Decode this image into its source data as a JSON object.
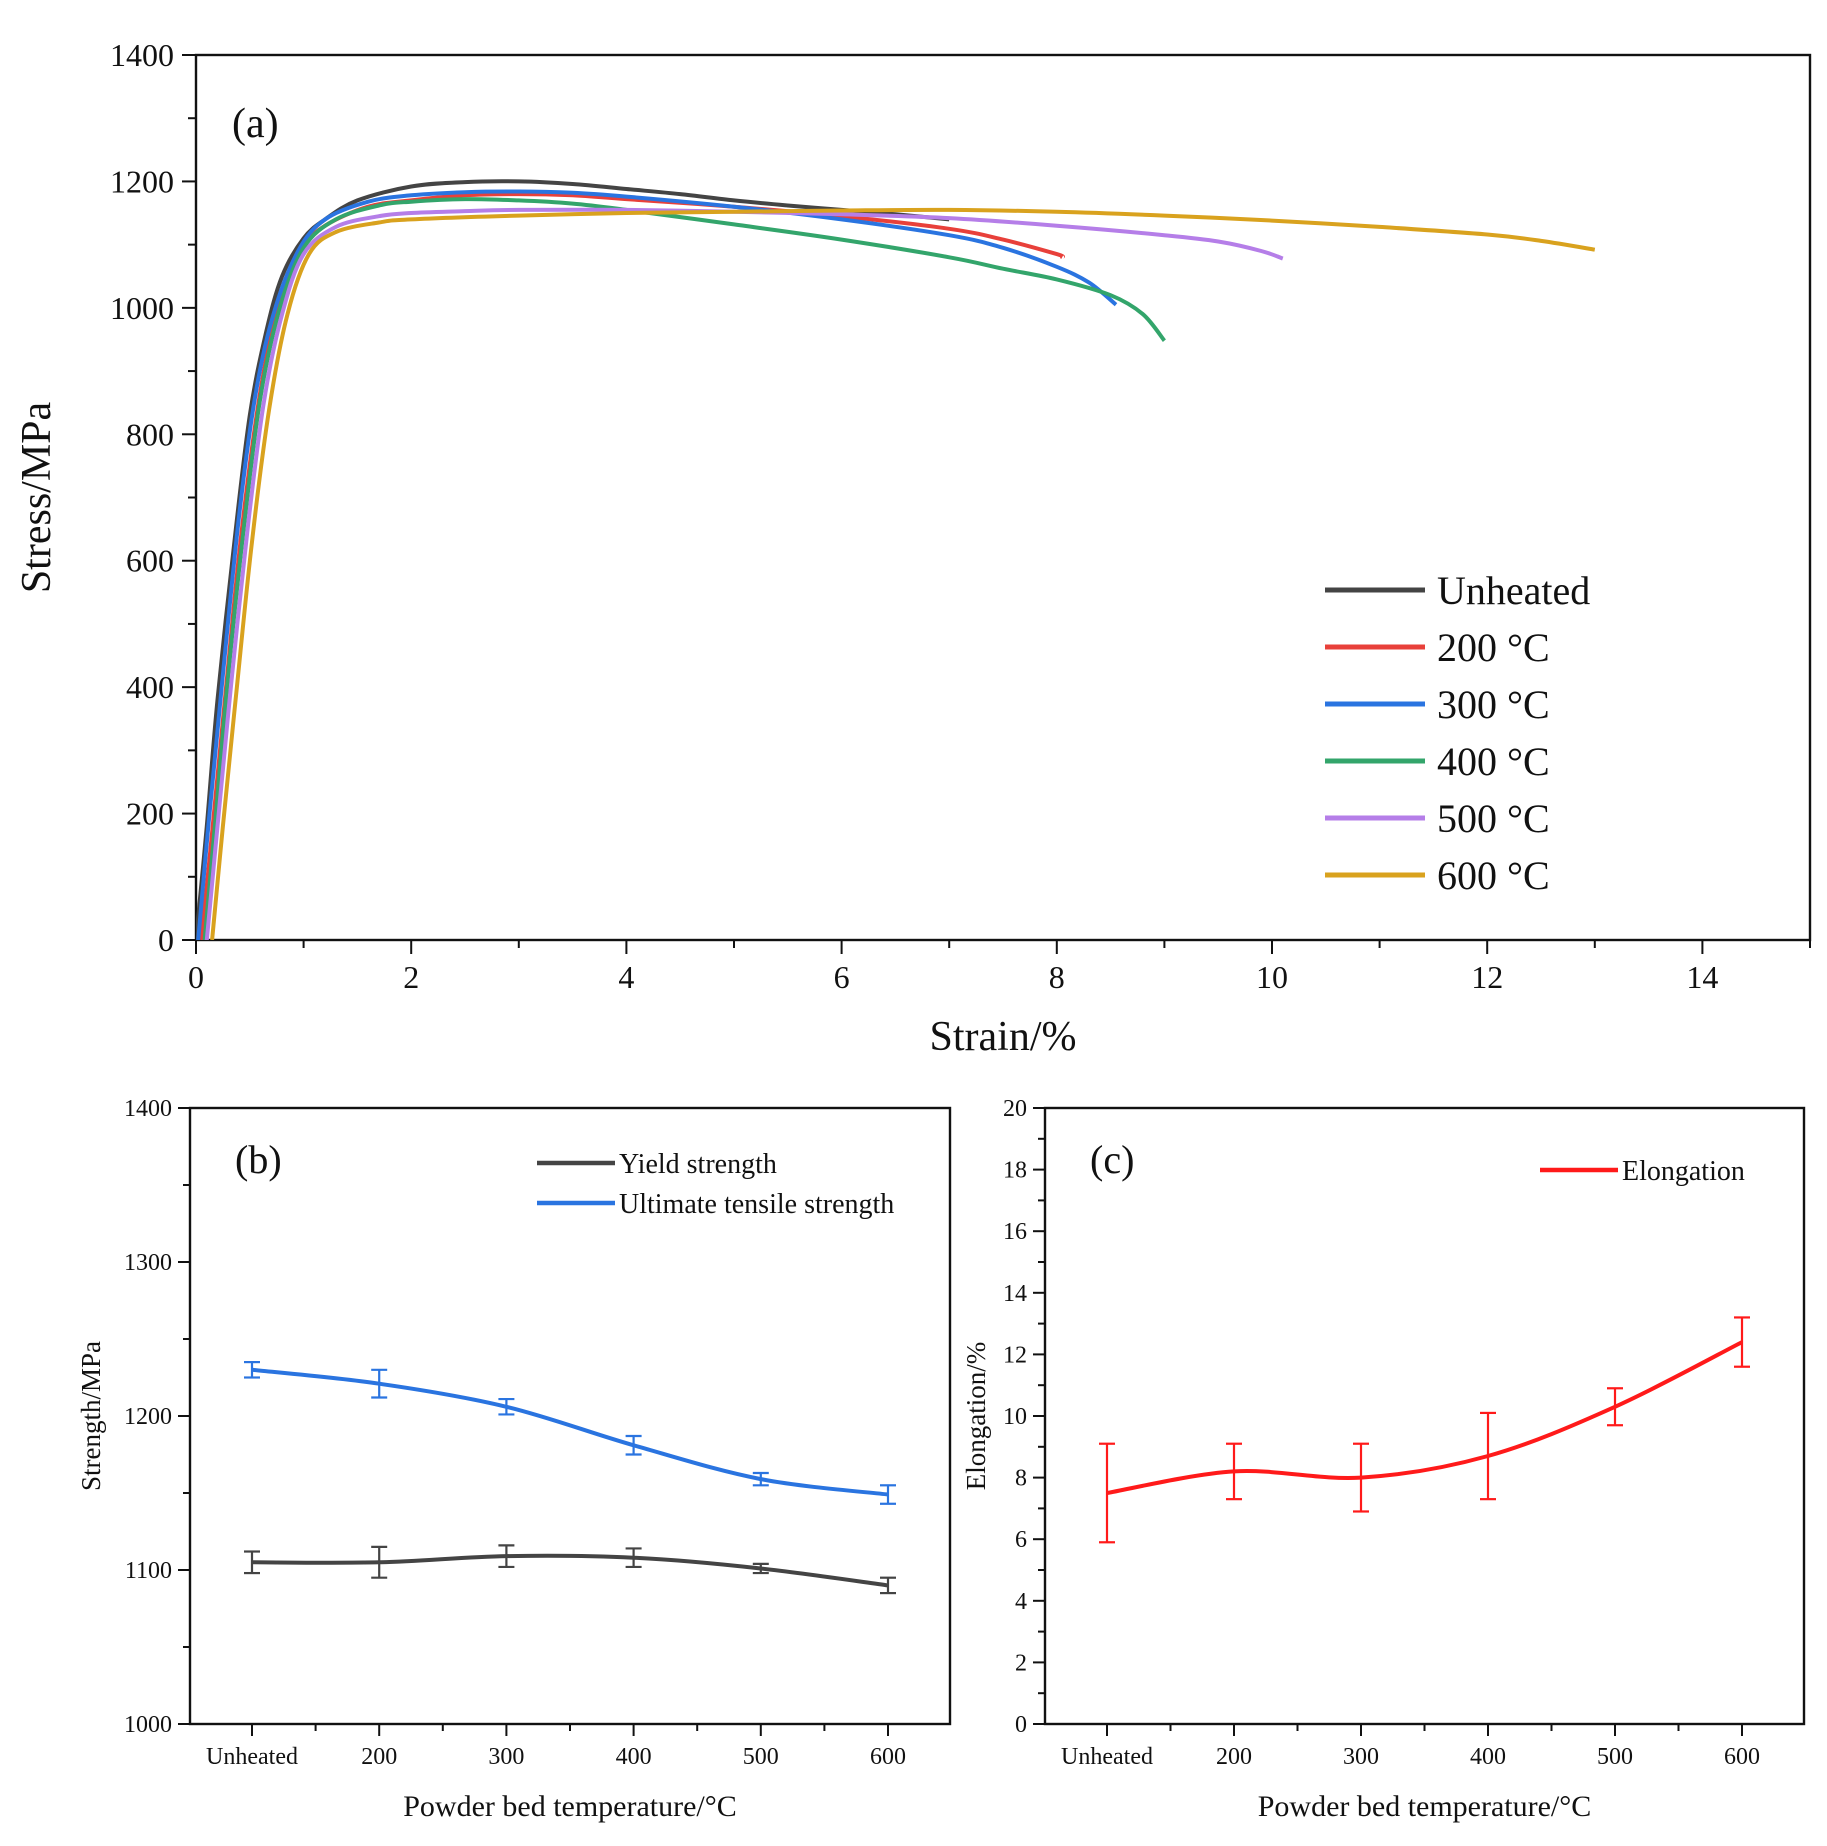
{
  "chart_data": [
    {
      "id": "a",
      "type": "line",
      "panel_label": "(a)",
      "title": "",
      "xlabel": "Strain/%",
      "ylabel": "Stress/MPa",
      "xlim": [
        0,
        15
      ],
      "ylim": [
        0,
        1400
      ],
      "xticks": [
        0,
        2,
        4,
        6,
        8,
        10,
        12,
        14
      ],
      "yticks": [
        0,
        200,
        400,
        600,
        800,
        1000,
        1200,
        1400
      ],
      "legend_position": "lower-right",
      "series": [
        {
          "name": "Unheated",
          "color": "#444444",
          "points": [
            [
              0,
              0
            ],
            [
              0.1,
              180
            ],
            [
              0.2,
              380
            ],
            [
              0.35,
              620
            ],
            [
              0.5,
              830
            ],
            [
              0.65,
              960
            ],
            [
              0.8,
              1050
            ],
            [
              1.0,
              1110
            ],
            [
              1.2,
              1140
            ],
            [
              1.5,
              1170
            ],
            [
              2.0,
              1192
            ],
            [
              2.5,
              1199
            ],
            [
              3.0,
              1200
            ],
            [
              3.5,
              1196
            ],
            [
              4.0,
              1188
            ],
            [
              4.5,
              1180
            ],
            [
              5.0,
              1170
            ],
            [
              5.5,
              1162
            ],
            [
              6.0,
              1155
            ],
            [
              6.5,
              1148
            ],
            [
              7.0,
              1140
            ]
          ]
        },
        {
          "name": "200 °C",
          "color": "#e8403a",
          "points": [
            [
              0.05,
              0
            ],
            [
              0.15,
              170
            ],
            [
              0.28,
              400
            ],
            [
              0.42,
              640
            ],
            [
              0.6,
              870
            ],
            [
              0.78,
              1010
            ],
            [
              1.0,
              1095
            ],
            [
              1.2,
              1130
            ],
            [
              1.6,
              1160
            ],
            [
              2.0,
              1170
            ],
            [
              2.5,
              1178
            ],
            [
              3.0,
              1180
            ],
            [
              3.5,
              1178
            ],
            [
              4.0,
              1172
            ],
            [
              5.0,
              1160
            ],
            [
              6.0,
              1145
            ],
            [
              7.0,
              1125
            ],
            [
              7.5,
              1108
            ],
            [
              8.0,
              1085
            ],
            [
              8.05,
              1080
            ]
          ]
        },
        {
          "name": "300 °C",
          "color": "#2a74e0",
          "points": [
            [
              0.02,
              0
            ],
            [
              0.12,
              190
            ],
            [
              0.25,
              420
            ],
            [
              0.4,
              670
            ],
            [
              0.55,
              860
            ],
            [
              0.72,
              990
            ],
            [
              0.95,
              1090
            ],
            [
              1.2,
              1140
            ],
            [
              1.6,
              1168
            ],
            [
              2.0,
              1178
            ],
            [
              2.5,
              1183
            ],
            [
              3.0,
              1184
            ],
            [
              3.5,
              1182
            ],
            [
              4.0,
              1176
            ],
            [
              5.0,
              1160
            ],
            [
              6.0,
              1140
            ],
            [
              7.0,
              1115
            ],
            [
              7.5,
              1095
            ],
            [
              8.0,
              1065
            ],
            [
              8.3,
              1040
            ],
            [
              8.55,
              1005
            ]
          ]
        },
        {
          "name": "400 °C",
          "color": "#33a56b",
          "points": [
            [
              0.08,
              0
            ],
            [
              0.18,
              190
            ],
            [
              0.3,
              420
            ],
            [
              0.45,
              660
            ],
            [
              0.6,
              860
            ],
            [
              0.78,
              1000
            ],
            [
              1.0,
              1095
            ],
            [
              1.3,
              1140
            ],
            [
              1.7,
              1162
            ],
            [
              2.0,
              1168
            ],
            [
              2.5,
              1172
            ],
            [
              3.0,
              1170
            ],
            [
              3.5,
              1165
            ],
            [
              4.0,
              1155
            ],
            [
              5.0,
              1132
            ],
            [
              6.0,
              1108
            ],
            [
              7.0,
              1080
            ],
            [
              7.5,
              1062
            ],
            [
              8.0,
              1045
            ],
            [
              8.5,
              1020
            ],
            [
              8.8,
              990
            ],
            [
              9.0,
              948
            ]
          ]
        },
        {
          "name": "500 °C",
          "color": "#b57ee8",
          "points": [
            [
              0.1,
              0
            ],
            [
              0.2,
              180
            ],
            [
              0.33,
              410
            ],
            [
              0.48,
              650
            ],
            [
              0.63,
              850
            ],
            [
              0.8,
              990
            ],
            [
              1.0,
              1085
            ],
            [
              1.3,
              1128
            ],
            [
              1.7,
              1145
            ],
            [
              2.0,
              1150
            ],
            [
              2.5,
              1153
            ],
            [
              3.0,
              1155
            ],
            [
              4.0,
              1155
            ],
            [
              5.0,
              1152
            ],
            [
              6.0,
              1148
            ],
            [
              7.0,
              1142
            ],
            [
              8.0,
              1130
            ],
            [
              9.0,
              1115
            ],
            [
              9.5,
              1105
            ],
            [
              9.9,
              1090
            ],
            [
              10.1,
              1078
            ]
          ]
        },
        {
          "name": "600 °C",
          "color": "#d9a21e",
          "points": [
            [
              0.15,
              0
            ],
            [
              0.25,
              180
            ],
            [
              0.38,
              400
            ],
            [
              0.52,
              630
            ],
            [
              0.68,
              840
            ],
            [
              0.85,
              990
            ],
            [
              1.05,
              1085
            ],
            [
              1.3,
              1120
            ],
            [
              1.7,
              1135
            ],
            [
              2.0,
              1140
            ],
            [
              3.0,
              1146
            ],
            [
              4.0,
              1150
            ],
            [
              5.0,
              1152
            ],
            [
              6.0,
              1154
            ],
            [
              7.0,
              1155
            ],
            [
              8.0,
              1152
            ],
            [
              9.0,
              1146
            ],
            [
              10.0,
              1138
            ],
            [
              11.0,
              1128
            ],
            [
              12.0,
              1116
            ],
            [
              12.5,
              1106
            ],
            [
              13.0,
              1092
            ]
          ]
        }
      ]
    },
    {
      "id": "b",
      "type": "line",
      "panel_label": "(b)",
      "title": "",
      "xlabel": "Powder bed temperature/°C",
      "ylabel": "Strength/MPa",
      "categories": [
        "Unheated",
        "200",
        "300",
        "400",
        "500",
        "600"
      ],
      "ylim": [
        1000,
        1400
      ],
      "yticks": [
        1000,
        1100,
        1200,
        1300,
        1400
      ],
      "legend_position": "top-right",
      "series": [
        {
          "name": "Yield strength",
          "color": "#444444",
          "values": [
            1105,
            1105,
            1109,
            1108,
            1101,
            1090
          ],
          "errors": [
            7,
            10,
            7,
            6,
            3,
            5
          ]
        },
        {
          "name": "Ultimate tensile strength",
          "color": "#2a74e0",
          "values": [
            1230,
            1221,
            1206,
            1181,
            1159,
            1149
          ],
          "errors": [
            5,
            9,
            5,
            6,
            4,
            6
          ]
        }
      ]
    },
    {
      "id": "c",
      "type": "line",
      "panel_label": "(c)",
      "title": "",
      "xlabel": "Powder bed temperature/°C",
      "ylabel": "Elongation/%",
      "categories": [
        "Unheated",
        "200",
        "300",
        "400",
        "500",
        "600"
      ],
      "ylim": [
        0,
        20
      ],
      "yticks": [
        0,
        2,
        4,
        6,
        8,
        10,
        12,
        14,
        16,
        18,
        20
      ],
      "legend_position": "top-right",
      "series": [
        {
          "name": "Elongation",
          "color": "#ff1a1a",
          "values": [
            7.5,
            8.2,
            8.0,
            8.7,
            10.3,
            12.4
          ],
          "errors": [
            1.6,
            0.9,
            1.1,
            1.4,
            0.6,
            0.8
          ]
        }
      ]
    }
  ]
}
